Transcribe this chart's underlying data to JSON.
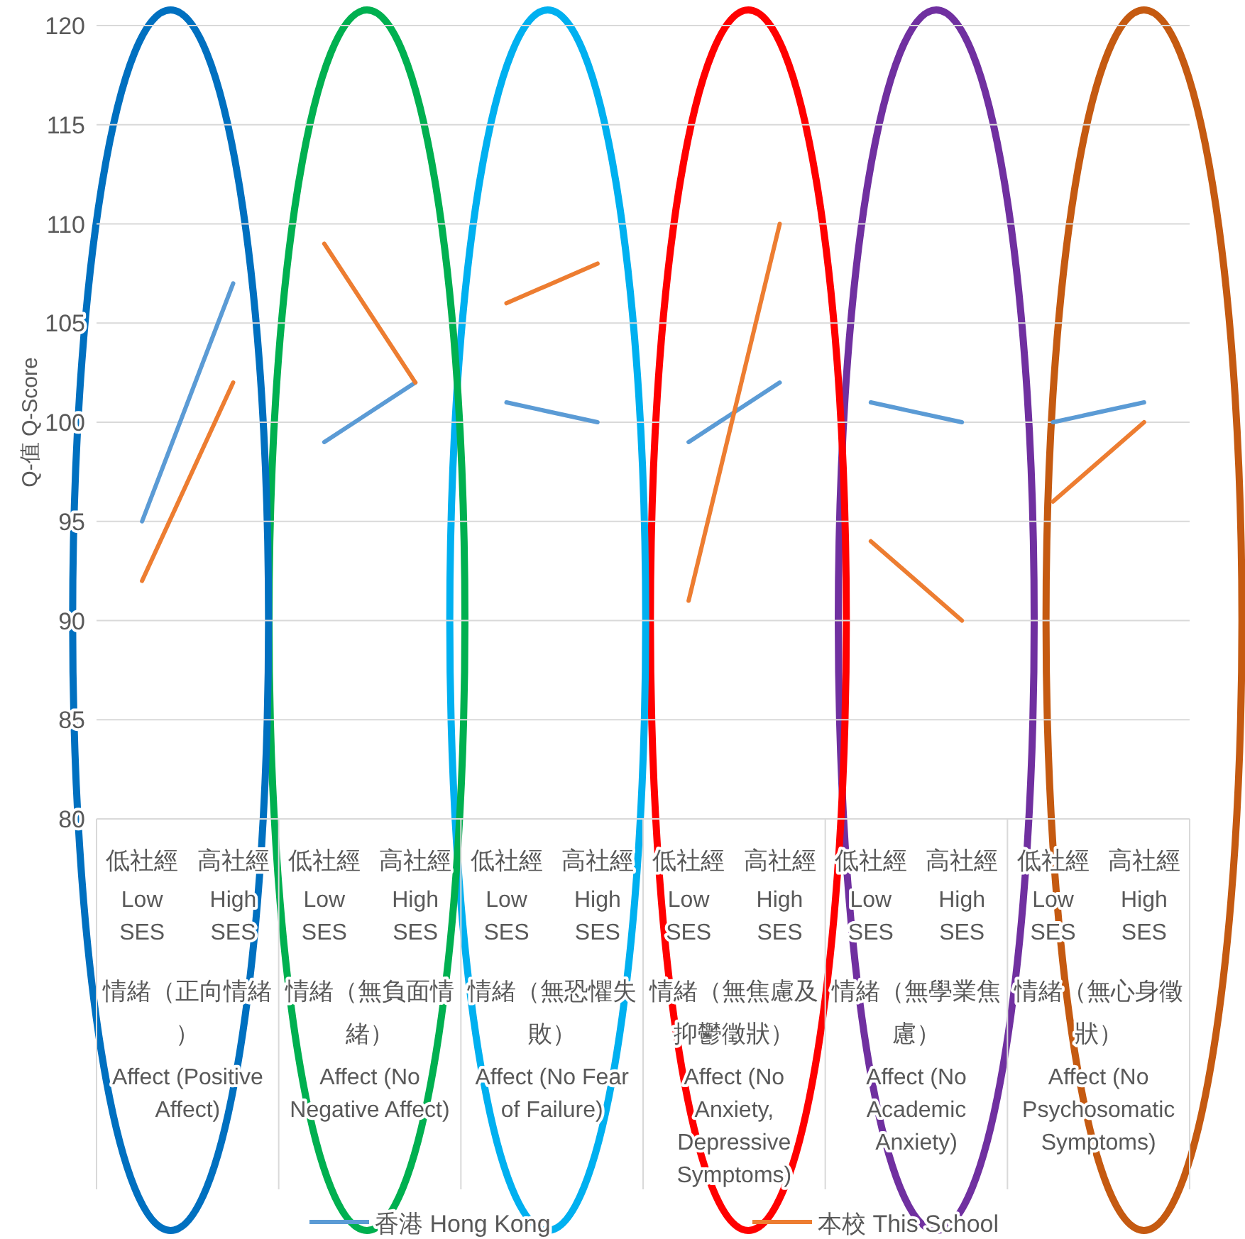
{
  "chart_data": {
    "type": "line",
    "ylabel": "Q-值 Q-Score",
    "categories": [
      "低社經 Low SES",
      "高社經 High SES",
      "低社經 Low SES",
      "高社經 High SES",
      "低社經 Low SES",
      "高社經 High SES",
      "低社經 Low SES",
      "高社經 High SES",
      "低社經 Low SES",
      "高社經 High SES",
      "低社經 Low SES",
      "高社經 High SES"
    ],
    "series": [
      {
        "name": "香港 Hong Kong",
        "color": "#5b9bd5",
        "values": [
          95,
          107,
          99,
          102,
          101,
          100,
          99,
          102,
          101,
          100,
          100,
          101
        ]
      },
      {
        "name": "本校 This School",
        "color": "#ed7d31",
        "values": [
          92,
          102,
          109,
          102,
          106,
          108,
          91,
          110,
          94,
          90,
          96,
          100
        ]
      }
    ],
    "annotations": [
      "情緒（正向情緒） Affect (Positive Affect)",
      "情緒（無負面情緒） Affect (No Negative Affect)",
      "情緒（無恐懼失敗） Affect (No Fear of Failure)",
      "情緒（無焦慮及抑鬱徵狀） Affect (No Anxiety, Depressive Symptoms)",
      "情緒（無學業焦慮） Affect (No Academic Anxiety)",
      "情緒（無心身徵狀） Affect (No Psychosomatic Symptoms)"
    ],
    "ylim": [
      80,
      120
    ],
    "yticks": [
      80,
      85,
      90,
      95,
      100,
      105,
      110,
      115,
      120
    ],
    "grid": "y",
    "legend": "bottom",
    "line_style": "solid"
  }
}
